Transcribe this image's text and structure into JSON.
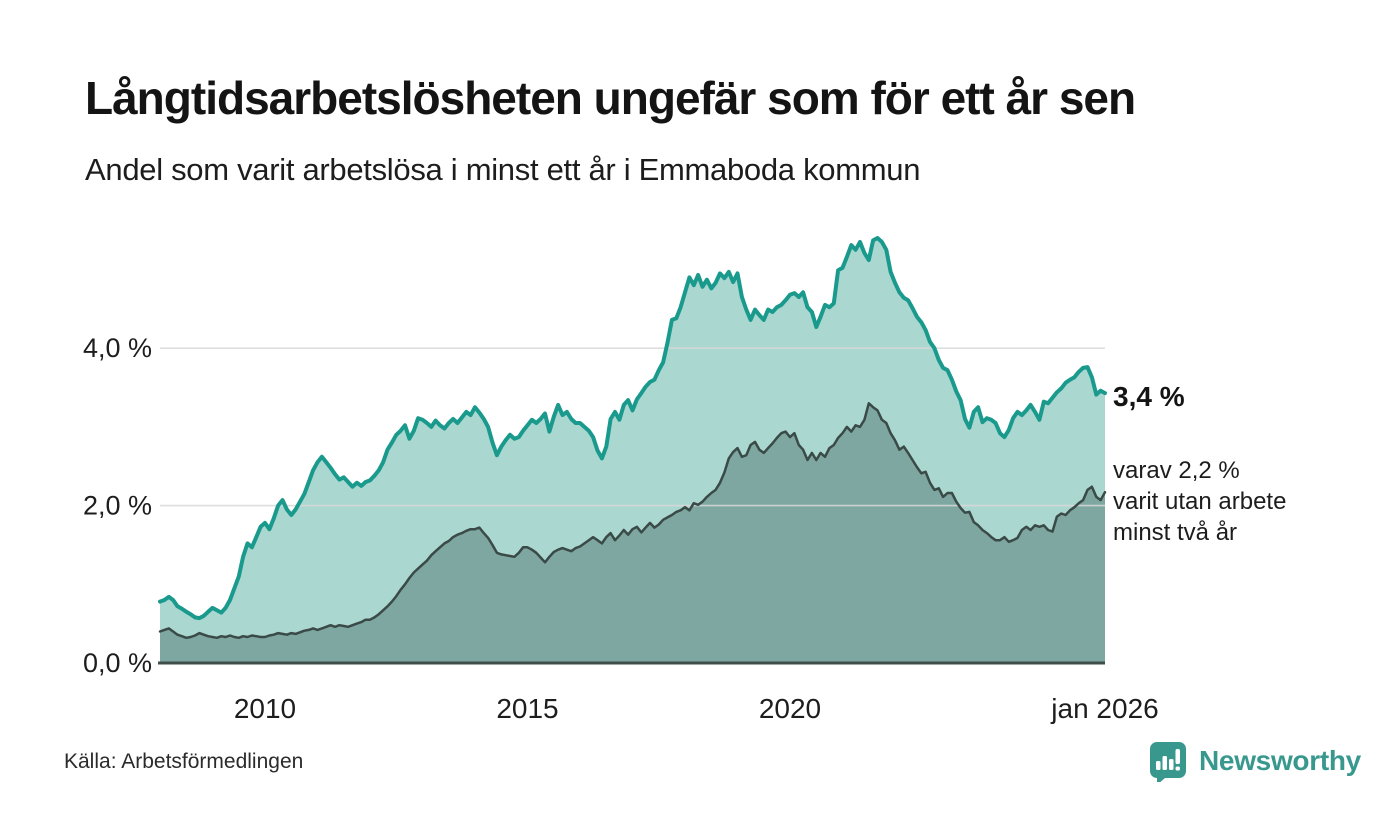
{
  "header": {
    "title": "Långtidsarbetslösheten ungefär som för ett år sen",
    "subtitle": "Andel som varit arbetslösa i minst ett år i Emmaboda kommun"
  },
  "chart_data": {
    "type": "area",
    "title": "Långtidsarbetslösheten ungefär som för ett år sen",
    "subtitle": "Andel som varit arbetslösa i minst ett år i Emmaboda kommun",
    "x_unit": "month",
    "x_start_year": 2008.0,
    "x_end_year": 2026.0,
    "ylim": [
      0,
      5.6
    ],
    "grid": "horizontal",
    "legend_position": "none",
    "x_ticks": [
      {
        "label": "2010",
        "year": 2010
      },
      {
        "label": "2015",
        "year": 2015
      },
      {
        "label": "2020",
        "year": 2020
      },
      {
        "label": "jan 2026",
        "year": 2026
      }
    ],
    "y_ticks": [
      {
        "label": "0,0 %",
        "value": 0.0
      },
      {
        "label": "2,0 %",
        "value": 2.0
      },
      {
        "label": "4,0 %",
        "value": 4.0
      }
    ],
    "series": [
      {
        "name": "Andel arbetslösa minst ett år",
        "stroke": "#1a9a8d",
        "fill": "#abd7d1",
        "stroke_width": 4,
        "end_value_label": "3,4 %",
        "values": [
          0.78,
          0.8,
          0.84,
          0.8,
          0.72,
          0.69,
          0.65,
          0.62,
          0.58,
          0.57,
          0.6,
          0.65,
          0.7,
          0.67,
          0.64,
          0.7,
          0.8,
          0.95,
          1.1,
          1.35,
          1.52,
          1.47,
          1.6,
          1.73,
          1.78,
          1.7,
          1.84,
          2.0,
          2.07,
          1.95,
          1.88,
          1.95,
          2.05,
          2.15,
          2.3,
          2.45,
          2.55,
          2.62,
          2.55,
          2.48,
          2.4,
          2.33,
          2.36,
          2.3,
          2.24,
          2.29,
          2.25,
          2.3,
          2.32,
          2.38,
          2.45,
          2.55,
          2.71,
          2.8,
          2.9,
          2.95,
          3.02,
          2.85,
          2.95,
          3.11,
          3.09,
          3.05,
          3.0,
          3.08,
          3.02,
          2.98,
          3.05,
          3.1,
          3.05,
          3.12,
          3.19,
          3.15,
          3.25,
          3.18,
          3.1,
          3.0,
          2.8,
          2.64,
          2.75,
          2.83,
          2.9,
          2.85,
          2.87,
          2.95,
          3.02,
          3.09,
          3.05,
          3.1,
          3.17,
          2.94,
          3.13,
          3.28,
          3.15,
          3.19,
          3.1,
          3.05,
          3.05,
          3.0,
          2.95,
          2.87,
          2.7,
          2.6,
          2.75,
          3.1,
          3.19,
          3.09,
          3.28,
          3.34,
          3.21,
          3.35,
          3.43,
          3.51,
          3.57,
          3.6,
          3.72,
          3.82,
          4.07,
          4.36,
          4.38,
          4.52,
          4.71,
          4.9,
          4.8,
          4.93,
          4.78,
          4.87,
          4.76,
          4.83,
          4.95,
          4.89,
          4.97,
          4.84,
          4.95,
          4.65,
          4.49,
          4.36,
          4.49,
          4.42,
          4.36,
          4.49,
          4.46,
          4.52,
          4.55,
          4.61,
          4.68,
          4.7,
          4.65,
          4.71,
          4.52,
          4.46,
          4.27,
          4.4,
          4.55,
          4.52,
          4.57,
          4.99,
          5.02,
          5.16,
          5.31,
          5.25,
          5.35,
          5.21,
          5.12,
          5.37,
          5.4,
          5.35,
          5.25,
          4.97,
          4.83,
          4.71,
          4.64,
          4.61,
          4.51,
          4.4,
          4.33,
          4.23,
          4.08,
          4.0,
          3.85,
          3.75,
          3.72,
          3.6,
          3.45,
          3.34,
          3.1,
          2.99,
          3.19,
          3.25,
          3.06,
          3.11,
          3.09,
          3.05,
          2.92,
          2.87,
          2.96,
          3.11,
          3.19,
          3.15,
          3.21,
          3.28,
          3.19,
          3.09,
          3.32,
          3.3,
          3.37,
          3.44,
          3.49,
          3.56,
          3.6,
          3.63,
          3.7,
          3.75,
          3.76,
          3.63,
          3.41,
          3.46,
          3.43
        ]
      },
      {
        "name": "Andel arbetslösa minst två år",
        "stroke": "#3a4a47",
        "fill": "#7ea7a1",
        "stroke_width": 2.5,
        "end_value_label": "2,2 %",
        "values": [
          0.4,
          0.42,
          0.44,
          0.4,
          0.36,
          0.34,
          0.32,
          0.33,
          0.35,
          0.38,
          0.36,
          0.34,
          0.33,
          0.32,
          0.34,
          0.33,
          0.35,
          0.33,
          0.32,
          0.34,
          0.33,
          0.35,
          0.34,
          0.33,
          0.33,
          0.35,
          0.36,
          0.38,
          0.37,
          0.36,
          0.38,
          0.37,
          0.39,
          0.41,
          0.42,
          0.44,
          0.42,
          0.44,
          0.46,
          0.48,
          0.46,
          0.48,
          0.47,
          0.46,
          0.48,
          0.5,
          0.52,
          0.55,
          0.55,
          0.58,
          0.62,
          0.67,
          0.72,
          0.78,
          0.85,
          0.93,
          1.0,
          1.08,
          1.15,
          1.2,
          1.25,
          1.3,
          1.37,
          1.42,
          1.47,
          1.52,
          1.55,
          1.6,
          1.63,
          1.65,
          1.68,
          1.7,
          1.7,
          1.72,
          1.65,
          1.59,
          1.5,
          1.4,
          1.38,
          1.37,
          1.36,
          1.35,
          1.4,
          1.47,
          1.47,
          1.44,
          1.4,
          1.34,
          1.28,
          1.35,
          1.41,
          1.44,
          1.46,
          1.44,
          1.42,
          1.46,
          1.48,
          1.52,
          1.56,
          1.6,
          1.56,
          1.52,
          1.6,
          1.65,
          1.56,
          1.62,
          1.69,
          1.63,
          1.7,
          1.73,
          1.66,
          1.72,
          1.78,
          1.72,
          1.76,
          1.82,
          1.85,
          1.88,
          1.92,
          1.94,
          1.98,
          1.94,
          2.03,
          2.01,
          2.05,
          2.11,
          2.16,
          2.2,
          2.29,
          2.42,
          2.6,
          2.68,
          2.73,
          2.62,
          2.64,
          2.77,
          2.81,
          2.71,
          2.67,
          2.73,
          2.79,
          2.86,
          2.92,
          2.94,
          2.87,
          2.92,
          2.77,
          2.71,
          2.58,
          2.67,
          2.58,
          2.67,
          2.62,
          2.73,
          2.77,
          2.86,
          2.92,
          3.0,
          2.94,
          3.02,
          3.0,
          3.09,
          3.3,
          3.25,
          3.21,
          3.09,
          3.05,
          2.92,
          2.83,
          2.71,
          2.75,
          2.67,
          2.58,
          2.49,
          2.41,
          2.43,
          2.29,
          2.2,
          2.22,
          2.11,
          2.16,
          2.16,
          2.05,
          1.97,
          1.91,
          1.92,
          1.79,
          1.75,
          1.69,
          1.65,
          1.6,
          1.56,
          1.56,
          1.6,
          1.54,
          1.56,
          1.59,
          1.69,
          1.73,
          1.69,
          1.75,
          1.73,
          1.75,
          1.69,
          1.67,
          1.86,
          1.9,
          1.88,
          1.94,
          1.98,
          2.03,
          2.07,
          2.2,
          2.24,
          2.11,
          2.07,
          2.17
        ]
      }
    ],
    "end_labels": {
      "total": "3,4 %",
      "secondary": "varav 2,2 %\nvarit utan arbete\nminst två år"
    }
  },
  "footer": {
    "source": "Källa: Arbetsförmedlingen",
    "brand": "Newsworthy"
  },
  "colors": {
    "series1_stroke": "#1a9a8d",
    "series1_fill": "#abd7d1",
    "series2_stroke": "#3a4a47",
    "series2_fill": "#7ea7a1",
    "gridline": "#d9d9d9",
    "baseline": "#3f4e4b",
    "brand_teal": "#38988d",
    "text": "#141414"
  }
}
